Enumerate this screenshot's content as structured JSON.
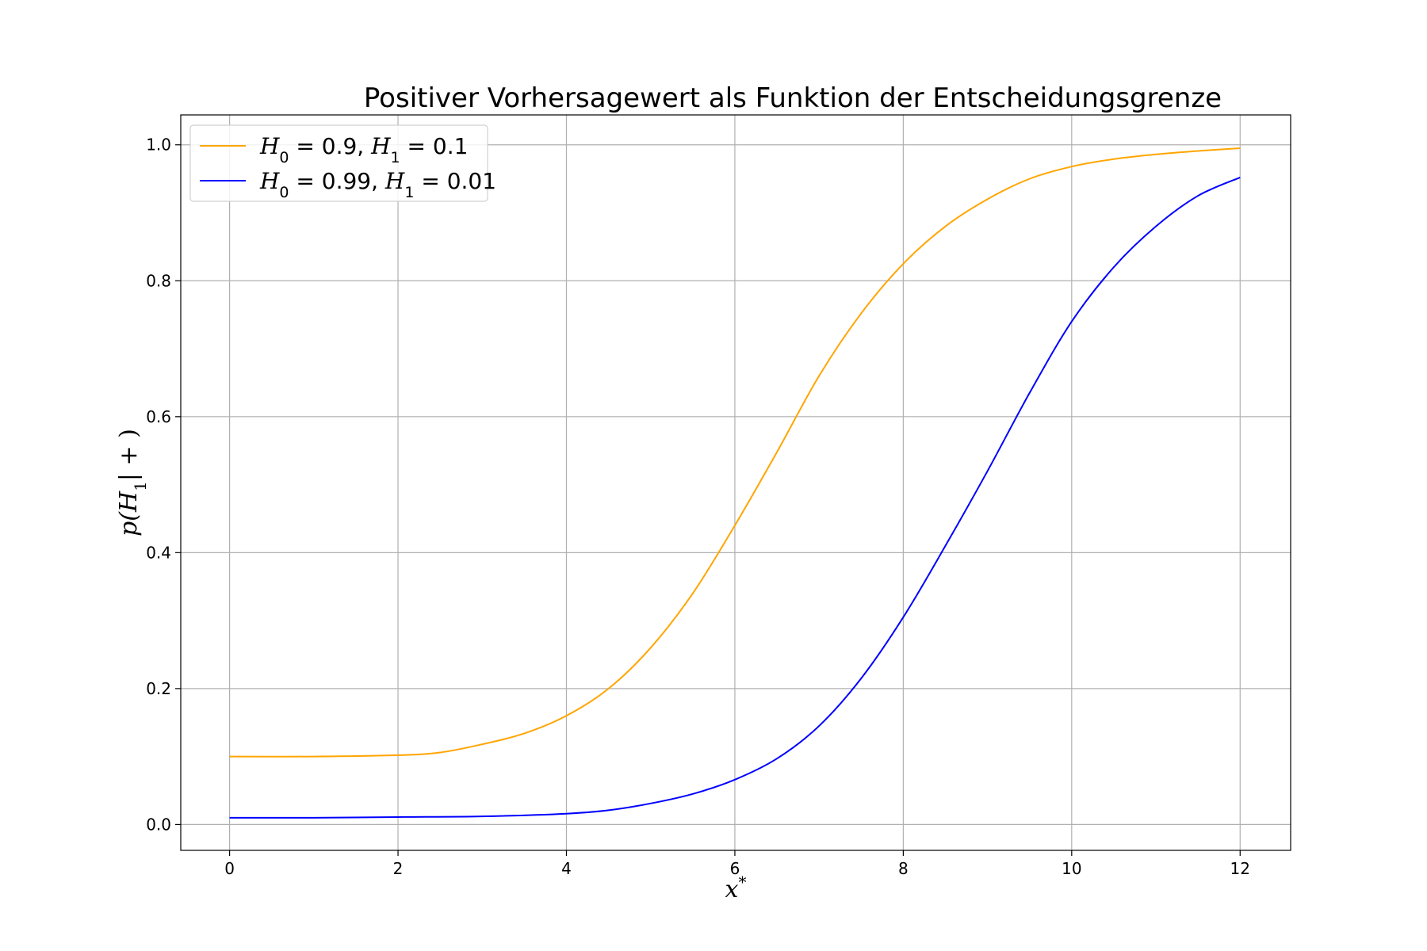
{
  "chart_data": {
    "type": "line",
    "title": "Positiver Vorhersagewert als Funktion der Entscheidungsgrenze",
    "xlabel": "x*",
    "ylabel": "p(H1|+)",
    "xlim": [
      -0.58,
      12.6
    ],
    "ylim": [
      -0.038,
      1.044
    ],
    "xticks": [
      0,
      2,
      4,
      6,
      8,
      10,
      12
    ],
    "yticks": [
      0.0,
      0.2,
      0.4,
      0.6,
      0.8,
      1.0
    ],
    "xtick_labels": [
      "0",
      "2",
      "4",
      "6",
      "8",
      "10",
      "12"
    ],
    "ytick_labels": [
      "0.0",
      "0.2",
      "0.4",
      "0.6",
      "0.8",
      "1.0"
    ],
    "grid": true,
    "legend_position": "top-left",
    "series": [
      {
        "name": "H0 = 0.9, H1 = 0.1",
        "color": "#FFA500",
        "x": [
          0,
          1,
          2,
          2.5,
          3,
          3.5,
          4,
          4.5,
          5,
          5.5,
          6,
          6.5,
          7,
          7.5,
          8,
          8.5,
          9,
          9.5,
          10,
          10.5,
          11,
          11.5,
          12
        ],
        "y": [
          0.1,
          0.1,
          0.102,
          0.106,
          0.118,
          0.134,
          0.16,
          0.2,
          0.26,
          0.34,
          0.44,
          0.548,
          0.66,
          0.752,
          0.825,
          0.88,
          0.92,
          0.95,
          0.968,
          0.979,
          0.986,
          0.991,
          0.995
        ]
      },
      {
        "name": "H0 = 0.99, H1 = 0.01",
        "color": "#0000FF",
        "x": [
          0,
          1,
          2,
          3,
          4,
          4.5,
          5,
          5.5,
          6,
          6.5,
          7,
          7.5,
          8,
          8.5,
          9,
          9.5,
          10,
          10.5,
          11,
          11.5,
          12
        ],
        "y": [
          0.01,
          0.01,
          0.011,
          0.012,
          0.016,
          0.021,
          0.031,
          0.045,
          0.066,
          0.097,
          0.145,
          0.215,
          0.305,
          0.41,
          0.52,
          0.635,
          0.74,
          0.82,
          0.88,
          0.925,
          0.952
        ]
      }
    ]
  }
}
